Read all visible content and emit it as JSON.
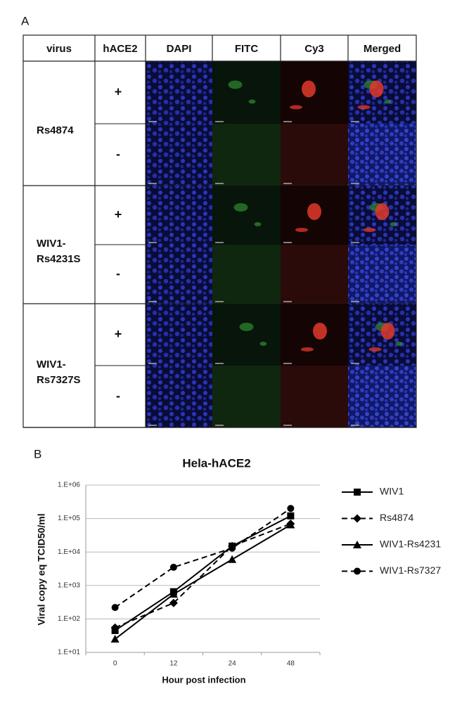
{
  "panel_a": {
    "label": "A",
    "table": {
      "header": [
        "virus",
        "hACE2",
        "DAPI",
        "FITC",
        "Cy3",
        "Merged"
      ],
      "rows": [
        {
          "virus": [
            "Rs4874"
          ],
          "hace2": [
            "+",
            "-"
          ]
        },
        {
          "virus": [
            "WIV1-",
            "Rs4231S"
          ],
          "hace2": [
            "+",
            "-"
          ]
        },
        {
          "virus": [
            "WIV1-",
            "Rs7327S"
          ],
          "hace2": [
            "+",
            "-"
          ]
        }
      ]
    }
  },
  "panel_b_label": "B",
  "chart_data": {
    "type": "line",
    "title": "Hela-hACE2",
    "x_label": "Hour post infection",
    "y_label": "Viral copy eq TCID50/ml",
    "categories": [
      "0",
      "12",
      "24",
      "48"
    ],
    "log_y": true,
    "grid": true,
    "ylim": [
      10,
      1000000
    ],
    "yticks": [
      {
        "value": 10,
        "label": "1.E+01"
      },
      {
        "value": 100,
        "label": "1.E+02"
      },
      {
        "value": 1000,
        "label": "1.E+03"
      },
      {
        "value": 10000,
        "label": "1.E+04"
      },
      {
        "value": 100000,
        "label": "1.E+05"
      },
      {
        "value": 1000000,
        "label": "1.E+06"
      }
    ],
    "series": [
      {
        "name": "WIV1",
        "color": "#000000",
        "marker": "square",
        "dashed": false,
        "values": [
          45,
          650,
          15000,
          120000
        ]
      },
      {
        "name": "Rs4874",
        "color": "#000000",
        "marker": "diamond",
        "dashed": true,
        "values": [
          55,
          300,
          15000,
          70000
        ]
      },
      {
        "name": "WIV1-Rs4231",
        "color": "#000000",
        "marker": "triangle",
        "dashed": false,
        "values": [
          25,
          550,
          6000,
          65000
        ]
      },
      {
        "name": "WIV1-Rs7327",
        "color": "#000000",
        "marker": "circle",
        "dashed": true,
        "values": [
          220,
          3500,
          13000,
          200000
        ]
      }
    ]
  }
}
